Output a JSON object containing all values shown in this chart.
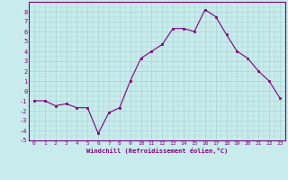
{
  "x": [
    0,
    1,
    2,
    3,
    4,
    5,
    6,
    7,
    8,
    9,
    10,
    11,
    12,
    13,
    14,
    15,
    16,
    17,
    18,
    19,
    20,
    21,
    22,
    23
  ],
  "y": [
    -1,
    -1,
    -1.5,
    -1.3,
    -1.7,
    -1.7,
    -4.3,
    -2.2,
    -1.7,
    1.0,
    3.3,
    4.0,
    4.7,
    6.3,
    6.3,
    6.0,
    8.2,
    7.5,
    5.7,
    4.0,
    3.3,
    2.0,
    1.0,
    -0.7
  ],
  "line_color": "#800080",
  "marker_color": "#800080",
  "bg_color": "#c8ecec",
  "grid_color": "#a8d4d4",
  "xlabel": "Windchill (Refroidissement éolien,°C)",
  "xlabel_color": "#800080",
  "tick_color": "#800080",
  "spine_color": "#800080",
  "ylim": [
    -5,
    9
  ],
  "xlim": [
    -0.5,
    23.5
  ],
  "yticks": [
    -5,
    -4,
    -3,
    -2,
    -1,
    0,
    1,
    2,
    3,
    4,
    5,
    6,
    7,
    8
  ],
  "xticks": [
    0,
    1,
    2,
    3,
    4,
    5,
    6,
    7,
    8,
    9,
    10,
    11,
    12,
    13,
    14,
    15,
    16,
    17,
    18,
    19,
    20,
    21,
    22,
    23
  ],
  "minor_yticks_step": 0.5,
  "minor_xticks_step": 0.5
}
